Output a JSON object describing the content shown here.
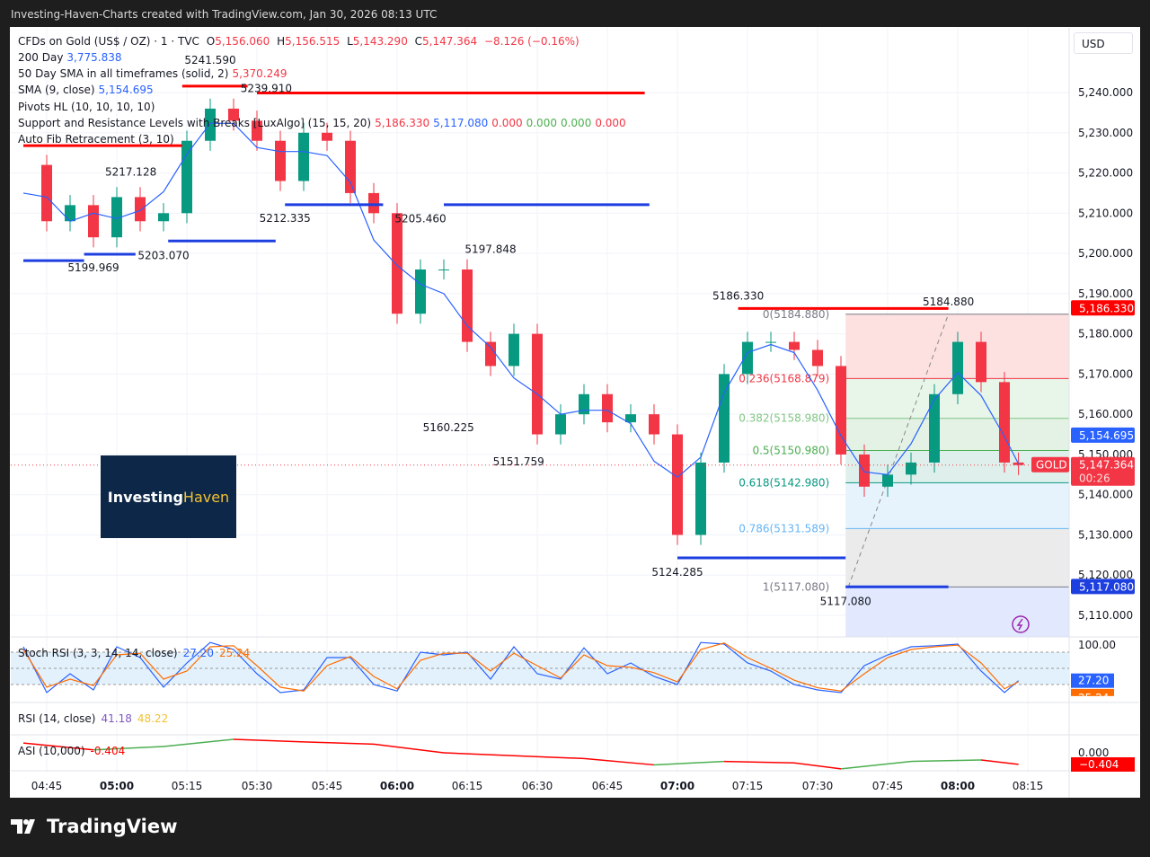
{
  "header": {
    "title": "Investing-Haven-Charts created with TradingView.com, Jan 30, 2026 08:13 UTC"
  },
  "legend": {
    "symbol": "CFDs on Gold (US$ / OZ) · 1 · TVC",
    "o": "5,156.060",
    "h": "5,156.515",
    "l": "5,143.290",
    "c": "5,147.364",
    "chg": "−8.126 (−0.16%)",
    "lines": [
      {
        "label": "200 Day",
        "values": [
          "3,775.838"
        ],
        "colors": [
          "#2962ff"
        ]
      },
      {
        "label": "50 Day SMA in all timeframes (solid, 2)",
        "values": [
          "5,370.249"
        ],
        "colors": [
          "#f23645"
        ]
      },
      {
        "label": "SMA (9, close)",
        "values": [
          "5,154.695"
        ],
        "colors": [
          "#2962ff"
        ]
      },
      {
        "label": "Pivots HL (10, 10, 10, 10)",
        "values": [],
        "colors": []
      },
      {
        "label": "Support and Resistance Levels with Breaks [LuxAlgo] (15, 15, 20)",
        "values": [
          "5,186.330",
          "5,117.080",
          "0.000",
          "0.000",
          "0.000",
          "0.000"
        ],
        "colors": [
          "#f23645",
          "#2962ff",
          "#f23645",
          "#4caf50",
          "#4caf50",
          "#f23645"
        ]
      },
      {
        "label": "Auto Fib Retracement (3, 10)",
        "values": [],
        "colors": []
      }
    ]
  },
  "currency": "USD",
  "logo": {
    "part1": "Investing",
    "part2": "Haven",
    "brand": "TradingView"
  },
  "colors": {
    "up": "#089981",
    "down": "#f23645",
    "sma": "#2962ff",
    "resistance": "#ff0000",
    "support": "#1e3fe0"
  },
  "chart_data": {
    "type": "candlestick",
    "xlabel": "",
    "ylabel": "",
    "ylim": [
      5105,
      5250
    ],
    "price_ticks": [
      5110,
      5120,
      5130,
      5140,
      5150,
      5160,
      5170,
      5180,
      5190,
      5200,
      5210,
      5220,
      5230,
      5240
    ],
    "price_tick_labels": [
      "5,110.000",
      "5,120.000",
      "5,130.000",
      "5,140.000",
      "5,150.000",
      "5,160.000",
      "5,170.000",
      "5,180.000",
      "5,190.000",
      "5,200.000",
      "5,210.000",
      "5,220.000",
      "5,230.000",
      "5,240.000"
    ],
    "time_ticks": [
      {
        "t": "04:45",
        "bold": false
      },
      {
        "t": "05:00",
        "bold": true
      },
      {
        "t": "05:15",
        "bold": false
      },
      {
        "t": "05:30",
        "bold": false
      },
      {
        "t": "05:45",
        "bold": false
      },
      {
        "t": "06:00",
        "bold": true
      },
      {
        "t": "06:15",
        "bold": false
      },
      {
        "t": "06:30",
        "bold": false
      },
      {
        "t": "06:45",
        "bold": false
      },
      {
        "t": "07:00",
        "bold": true
      },
      {
        "t": "07:15",
        "bold": false
      },
      {
        "t": "07:30",
        "bold": false
      },
      {
        "t": "07:45",
        "bold": false
      },
      {
        "t": "08:00",
        "bold": true
      },
      {
        "t": "08:15",
        "bold": false
      }
    ],
    "close_sampled_5min": {
      "times": [
        "04:40",
        "04:45",
        "04:50",
        "04:55",
        "05:00",
        "05:05",
        "05:10",
        "05:15",
        "05:20",
        "05:25",
        "05:30",
        "05:35",
        "05:40",
        "05:45",
        "05:50",
        "05:55",
        "06:00",
        "06:05",
        "06:10",
        "06:15",
        "06:20",
        "06:25",
        "06:30",
        "06:35",
        "06:40",
        "06:45",
        "06:50",
        "06:55",
        "07:00",
        "07:05",
        "07:10",
        "07:15",
        "07:20",
        "07:25",
        "07:30",
        "07:35",
        "07:40",
        "07:45",
        "07:50",
        "07:55",
        "08:00",
        "08:05",
        "08:10",
        "08:13"
      ],
      "values": [
        5222,
        5208,
        5212,
        5204,
        5214,
        5208,
        5210,
        5228,
        5236,
        5233,
        5228,
        5218,
        5230,
        5228,
        5215,
        5210,
        5185,
        5196,
        5196,
        5178,
        5172,
        5180,
        5155,
        5160,
        5165,
        5158,
        5160,
        5155,
        5130,
        5148,
        5170,
        5178,
        5178,
        5176,
        5172,
        5150,
        5142,
        5145,
        5148,
        5165,
        5178,
        5168,
        5148,
        5147.364
      ]
    },
    "pivots": [
      {
        "t": "04:55",
        "price": "5199.969",
        "pos": "below"
      },
      {
        "t": "05:03",
        "price": "5217.128",
        "pos": "above"
      },
      {
        "t": "05:10",
        "price": "5203.070",
        "pos": "below"
      },
      {
        "t": "05:20",
        "price": "5241.590",
        "pos": "above"
      },
      {
        "t": "05:32",
        "price": "5239.910",
        "pos": "above"
      },
      {
        "t": "05:36",
        "price": "5212.335",
        "pos": "below"
      },
      {
        "t": "06:05",
        "price": "5205.460",
        "pos": "above"
      },
      {
        "t": "06:11",
        "price": "5160.225",
        "pos": "below"
      },
      {
        "t": "06:20",
        "price": "5197.848",
        "pos": "above"
      },
      {
        "t": "06:26",
        "price": "5151.759",
        "pos": "below"
      },
      {
        "t": "07:00",
        "price": "5124.285",
        "pos": "below"
      },
      {
        "t": "07:13",
        "price": "5186.330",
        "pos": "above"
      },
      {
        "t": "07:36",
        "price": "5117.080",
        "pos": "below"
      },
      {
        "t": "07:58",
        "price": "5184.880",
        "pos": "above"
      }
    ],
    "sr_lines": [
      {
        "kind": "resistance",
        "from": "04:40",
        "to": "05:14",
        "price": 5226.8
      },
      {
        "kind": "resistance",
        "from": "05:14",
        "to": "05:28",
        "price": 5241.6
      },
      {
        "kind": "resistance",
        "from": "05:30",
        "to": "06:53",
        "price": 5239.9
      },
      {
        "kind": "support",
        "from": "04:40",
        "to": "04:53",
        "price": 5198.2
      },
      {
        "kind": "support",
        "from": "04:53",
        "to": "05:04",
        "price": 5199.8
      },
      {
        "kind": "support",
        "from": "05:11",
        "to": "05:34",
        "price": 5203.1
      },
      {
        "kind": "support",
        "from": "05:36",
        "to": "05:57",
        "price": 5212.1
      },
      {
        "kind": "support",
        "from": "06:10",
        "to": "06:54",
        "price": 5212.1
      },
      {
        "kind": "support",
        "from": "07:00",
        "to": "07:36",
        "price": 5124.3
      },
      {
        "kind": "resistance",
        "from": "07:13",
        "to": "07:58",
        "price": 5186.3
      },
      {
        "kind": "support",
        "from": "07:36",
        "to": "07:58",
        "price": 5117.1
      }
    ],
    "fib": {
      "from_time": "07:36",
      "levels": [
        {
          "label": "0(5184.880)",
          "price": 5184.88,
          "color": "#787b86",
          "fill": "#fde0e0"
        },
        {
          "label": "0.236(5168.879)",
          "price": 5168.879,
          "color": "#f23645",
          "fill": "#e8f5e9"
        },
        {
          "label": "0.382(5158.980)",
          "price": 5158.98,
          "color": "#81c784",
          "fill": "#e3f2e5"
        },
        {
          "label": "0.5(5150.980)",
          "price": 5150.98,
          "color": "#4caf50",
          "fill": "#dff0ec"
        },
        {
          "label": "0.618(5142.980)",
          "price": 5142.98,
          "color": "#089981",
          "fill": "#e6f3fc"
        },
        {
          "label": "0.786(5131.589)",
          "price": 5131.589,
          "color": "#64b5f6",
          "fill": "#ebebeb"
        },
        {
          "label": "1(5117.080)",
          "price": 5117.08,
          "color": "#787b86",
          "fill": "#e2e8fd"
        }
      ]
    },
    "price_badges": [
      {
        "text": "5,186.330",
        "price": 5186.33,
        "color": "#ff0000"
      },
      {
        "text": "5,154.695",
        "price": 5154.695,
        "color": "#2962ff"
      },
      {
        "text": "5,147.364",
        "sub": "00:26",
        "price": 5147.364,
        "color": "#f23645",
        "tag": "GOLD"
      },
      {
        "text": "5,117.080",
        "price": 5117.08,
        "color": "#1e3fe0"
      }
    ],
    "stoch_rsi": {
      "label": "Stoch RSI (3, 3, 14, 14, close)",
      "k_label": "27.20",
      "d_label": "25.24",
      "axis_label": "100.00",
      "k": [
        90,
        5,
        40,
        10,
        90,
        70,
        15,
        60,
        98,
        85,
        40,
        5,
        10,
        70,
        70,
        20,
        8,
        80,
        75,
        80,
        30,
        90,
        40,
        30,
        88,
        40,
        60,
        35,
        20,
        98,
        95,
        60,
        45,
        20,
        10,
        5,
        55,
        75,
        90,
        92,
        95,
        45,
        5,
        27.2
      ],
      "d": [
        85,
        15,
        30,
        18,
        75,
        78,
        30,
        45,
        90,
        92,
        55,
        15,
        8,
        55,
        72,
        35,
        12,
        65,
        78,
        78,
        45,
        78,
        55,
        32,
        75,
        55,
        52,
        42,
        25,
        85,
        97,
        70,
        50,
        28,
        14,
        8,
        40,
        70,
        85,
        90,
        93,
        60,
        12,
        25.24
      ]
    },
    "rsi": {
      "label": "RSI (14, close)",
      "v1": "41.18",
      "v2": "48.22"
    },
    "asi": {
      "label": "ASI (10,000)",
      "value": "-0.404",
      "zero_label": "0.000",
      "badge": "−0.404",
      "times": [
        "04:40",
        "04:55",
        "05:10",
        "05:25",
        "05:40",
        "05:55",
        "06:10",
        "06:25",
        "06:40",
        "06:55",
        "07:10",
        "07:25",
        "07:35",
        "07:50",
        "08:05",
        "08:13"
      ],
      "values": [
        0.34,
        0.1,
        0.22,
        0.47,
        0.38,
        0.3,
        0.0,
        -0.1,
        -0.2,
        -0.42,
        -0.3,
        -0.35,
        -0.56,
        -0.3,
        -0.25,
        -0.404
      ]
    }
  }
}
